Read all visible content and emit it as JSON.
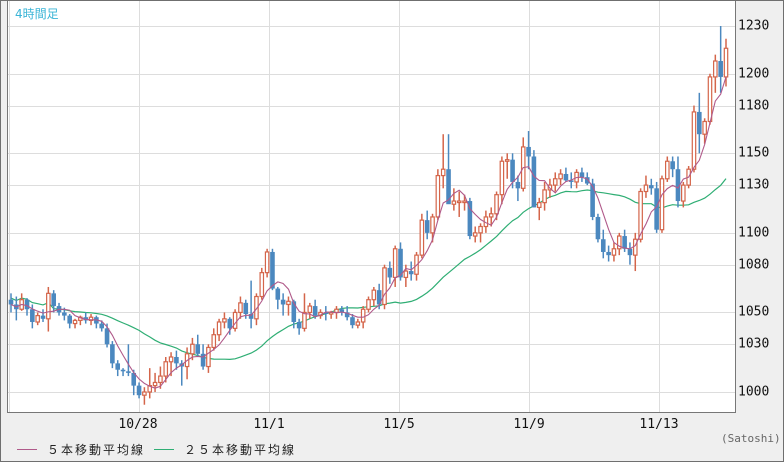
{
  "chart_data": {
    "type": "candlestick",
    "title": "4時間足",
    "unit": "(Satoshi)",
    "xlabel": "",
    "ylabel": "",
    "ylim": [
      990,
      1240
    ],
    "y_ticks": [
      1000,
      1030,
      1050,
      1080,
      1100,
      1130,
      1150,
      1180,
      1200,
      1230
    ],
    "x_ticks": [
      "10/28",
      "11/1",
      "11/5",
      "11/9",
      "11/13"
    ],
    "grid": true,
    "colors": {
      "up": "#d4654a",
      "down": "#4b88bf",
      "ma5": "#b05a8a",
      "ma25": "#2fae74",
      "grid": "#dddddd",
      "timeframe": "#3ab4d6"
    },
    "legend": [
      {
        "label": "５本移動平均線",
        "color": "#b05a8a"
      },
      {
        "label": "２５本移動平均線",
        "color": "#2fae74"
      }
    ],
    "candles": [
      [
        1058,
        1062,
        1050,
        1055
      ],
      [
        1055,
        1060,
        1045,
        1052
      ],
      [
        1052,
        1062,
        1051,
        1058
      ],
      [
        1058,
        1059,
        1048,
        1052
      ],
      [
        1052,
        1055,
        1040,
        1044
      ],
      [
        1044,
        1050,
        1042,
        1048
      ],
      [
        1048,
        1052,
        1044,
        1046
      ],
      [
        1046,
        1066,
        1038,
        1062
      ],
      [
        1062,
        1064,
        1050,
        1054
      ],
      [
        1054,
        1056,
        1048,
        1050
      ],
      [
        1050,
        1053,
        1045,
        1048
      ],
      [
        1048,
        1049,
        1040,
        1043
      ],
      [
        1043,
        1046,
        1040,
        1045
      ],
      [
        1045,
        1048,
        1042,
        1047
      ],
      [
        1047,
        1050,
        1043,
        1045
      ],
      [
        1045,
        1049,
        1042,
        1047
      ],
      [
        1047,
        1048,
        1040,
        1043
      ],
      [
        1043,
        1045,
        1038,
        1040
      ],
      [
        1040,
        1043,
        1028,
        1030
      ],
      [
        1030,
        1032,
        1015,
        1018
      ],
      [
        1018,
        1020,
        1010,
        1014
      ],
      [
        1014,
        1015,
        1010,
        1013
      ],
      [
        1013,
        1030,
        1010,
        1012
      ],
      [
        1012,
        1014,
        998,
        1004
      ],
      [
        1004,
        1006,
        996,
        998
      ],
      [
        998,
        1003,
        992,
        1000
      ],
      [
        1000,
        1015,
        996,
        1004
      ],
      [
        1004,
        1012,
        1000,
        1006
      ],
      [
        1006,
        1016,
        1002,
        1010
      ],
      [
        1010,
        1022,
        1006,
        1019
      ],
      [
        1019,
        1025,
        1010,
        1022
      ],
      [
        1022,
        1026,
        1014,
        1018
      ],
      [
        1018,
        1020,
        1004,
        1016
      ],
      [
        1016,
        1028,
        1008,
        1024
      ],
      [
        1024,
        1034,
        1020,
        1030
      ],
      [
        1030,
        1036,
        1022,
        1024
      ],
      [
        1024,
        1030,
        1014,
        1016
      ],
      [
        1016,
        1030,
        1012,
        1028
      ],
      [
        1028,
        1040,
        1026,
        1036
      ],
      [
        1036,
        1046,
        1032,
        1044
      ],
      [
        1044,
        1050,
        1040,
        1046
      ],
      [
        1046,
        1047,
        1036,
        1040
      ],
      [
        1040,
        1052,
        1038,
        1050
      ],
      [
        1050,
        1060,
        1046,
        1056
      ],
      [
        1056,
        1058,
        1046,
        1049
      ],
      [
        1049,
        1070,
        1040,
        1046
      ],
      [
        1046,
        1062,
        1042,
        1060
      ],
      [
        1060,
        1078,
        1058,
        1075
      ],
      [
        1075,
        1090,
        1072,
        1088
      ],
      [
        1088,
        1090,
        1064,
        1065
      ],
      [
        1065,
        1066,
        1052,
        1058
      ],
      [
        1058,
        1062,
        1048,
        1055
      ],
      [
        1055,
        1060,
        1048,
        1057
      ],
      [
        1057,
        1058,
        1040,
        1044
      ],
      [
        1044,
        1046,
        1036,
        1040
      ],
      [
        1040,
        1062,
        1038,
        1050
      ],
      [
        1050,
        1056,
        1046,
        1054
      ],
      [
        1054,
        1058,
        1046,
        1048
      ],
      [
        1048,
        1052,
        1046,
        1050
      ],
      [
        1050,
        1054,
        1045,
        1049
      ],
      [
        1049,
        1051,
        1046,
        1050
      ],
      [
        1050,
        1054,
        1046,
        1052
      ],
      [
        1052,
        1054,
        1048,
        1050
      ],
      [
        1050,
        1054,
        1045,
        1047
      ],
      [
        1047,
        1049,
        1040,
        1042
      ],
      [
        1042,
        1046,
        1040,
        1044
      ],
      [
        1044,
        1054,
        1040,
        1052
      ],
      [
        1052,
        1060,
        1050,
        1058
      ],
      [
        1058,
        1066,
        1054,
        1064
      ],
      [
        1064,
        1068,
        1052,
        1055
      ],
      [
        1055,
        1080,
        1052,
        1078
      ],
      [
        1078,
        1082,
        1068,
        1072
      ],
      [
        1072,
        1092,
        1066,
        1090
      ],
      [
        1090,
        1094,
        1070,
        1072
      ],
      [
        1072,
        1080,
        1066,
        1076
      ],
      [
        1076,
        1082,
        1070,
        1074
      ],
      [
        1074,
        1088,
        1070,
        1086
      ],
      [
        1086,
        1112,
        1084,
        1108
      ],
      [
        1108,
        1114,
        1096,
        1100
      ],
      [
        1100,
        1112,
        1094,
        1110
      ],
      [
        1110,
        1140,
        1108,
        1136
      ],
      [
        1136,
        1162,
        1128,
        1140
      ],
      [
        1140,
        1162,
        1120,
        1118
      ],
      [
        1118,
        1128,
        1114,
        1120
      ],
      [
        1120,
        1126,
        1110,
        1120
      ],
      [
        1120,
        1124,
        1114,
        1120
      ],
      [
        1120,
        1122,
        1096,
        1098
      ],
      [
        1098,
        1104,
        1094,
        1100
      ],
      [
        1100,
        1106,
        1094,
        1104
      ],
      [
        1104,
        1114,
        1100,
        1110
      ],
      [
        1110,
        1116,
        1104,
        1112
      ],
      [
        1112,
        1126,
        1108,
        1124
      ],
      [
        1124,
        1148,
        1118,
        1145
      ],
      [
        1145,
        1150,
        1134,
        1146
      ],
      [
        1146,
        1150,
        1128,
        1132
      ],
      [
        1132,
        1136,
        1120,
        1128
      ],
      [
        1128,
        1160,
        1126,
        1154
      ],
      [
        1154,
        1164,
        1140,
        1148
      ],
      [
        1148,
        1152,
        1116,
        1116
      ],
      [
        1116,
        1122,
        1108,
        1119
      ],
      [
        1119,
        1132,
        1114,
        1127
      ],
      [
        1127,
        1134,
        1122,
        1130
      ],
      [
        1130,
        1138,
        1126,
        1134
      ],
      [
        1134,
        1140,
        1130,
        1137
      ],
      [
        1137,
        1141,
        1132,
        1133
      ],
      [
        1133,
        1138,
        1128,
        1132
      ],
      [
        1132,
        1140,
        1128,
        1138
      ],
      [
        1138,
        1141,
        1132,
        1135
      ],
      [
        1135,
        1138,
        1130,
        1131
      ],
      [
        1131,
        1134,
        1108,
        1110
      ],
      [
        1110,
        1112,
        1094,
        1096
      ],
      [
        1096,
        1102,
        1084,
        1088
      ],
      [
        1088,
        1092,
        1082,
        1086
      ],
      [
        1086,
        1094,
        1082,
        1090
      ],
      [
        1090,
        1100,
        1086,
        1098
      ],
      [
        1098,
        1102,
        1088,
        1090
      ],
      [
        1090,
        1094,
        1080,
        1086
      ],
      [
        1086,
        1100,
        1076,
        1096
      ],
      [
        1096,
        1128,
        1094,
        1126
      ],
      [
        1126,
        1136,
        1122,
        1130
      ],
      [
        1130,
        1134,
        1124,
        1128
      ],
      [
        1128,
        1132,
        1100,
        1102
      ],
      [
        1102,
        1136,
        1100,
        1134
      ],
      [
        1134,
        1148,
        1132,
        1145
      ],
      [
        1145,
        1148,
        1135,
        1140
      ],
      [
        1140,
        1148,
        1116,
        1120
      ],
      [
        1120,
        1132,
        1116,
        1130
      ],
      [
        1130,
        1142,
        1128,
        1140
      ],
      [
        1140,
        1180,
        1138,
        1176
      ],
      [
        1176,
        1188,
        1150,
        1162
      ],
      [
        1162,
        1172,
        1156,
        1170
      ],
      [
        1170,
        1200,
        1168,
        1198
      ],
      [
        1198,
        1212,
        1188,
        1208
      ],
      [
        1208,
        1230,
        1188,
        1198
      ],
      [
        1198,
        1222,
        1192,
        1216
      ]
    ]
  },
  "header": {
    "timeframe_label": "4時間足"
  },
  "axis": {
    "y_labels": [
      "1230",
      "1200",
      "1180",
      "1150",
      "1130",
      "1100",
      "1080",
      "1050",
      "1030",
      "1000"
    ],
    "x_labels": [
      "10/28",
      "11/1",
      "11/5",
      "11/9",
      "11/13"
    ],
    "unit_label": "(Satoshi)"
  },
  "legend": {
    "ma5_label": "５本移動平均線",
    "ma25_label": "２５本移動平均線"
  }
}
